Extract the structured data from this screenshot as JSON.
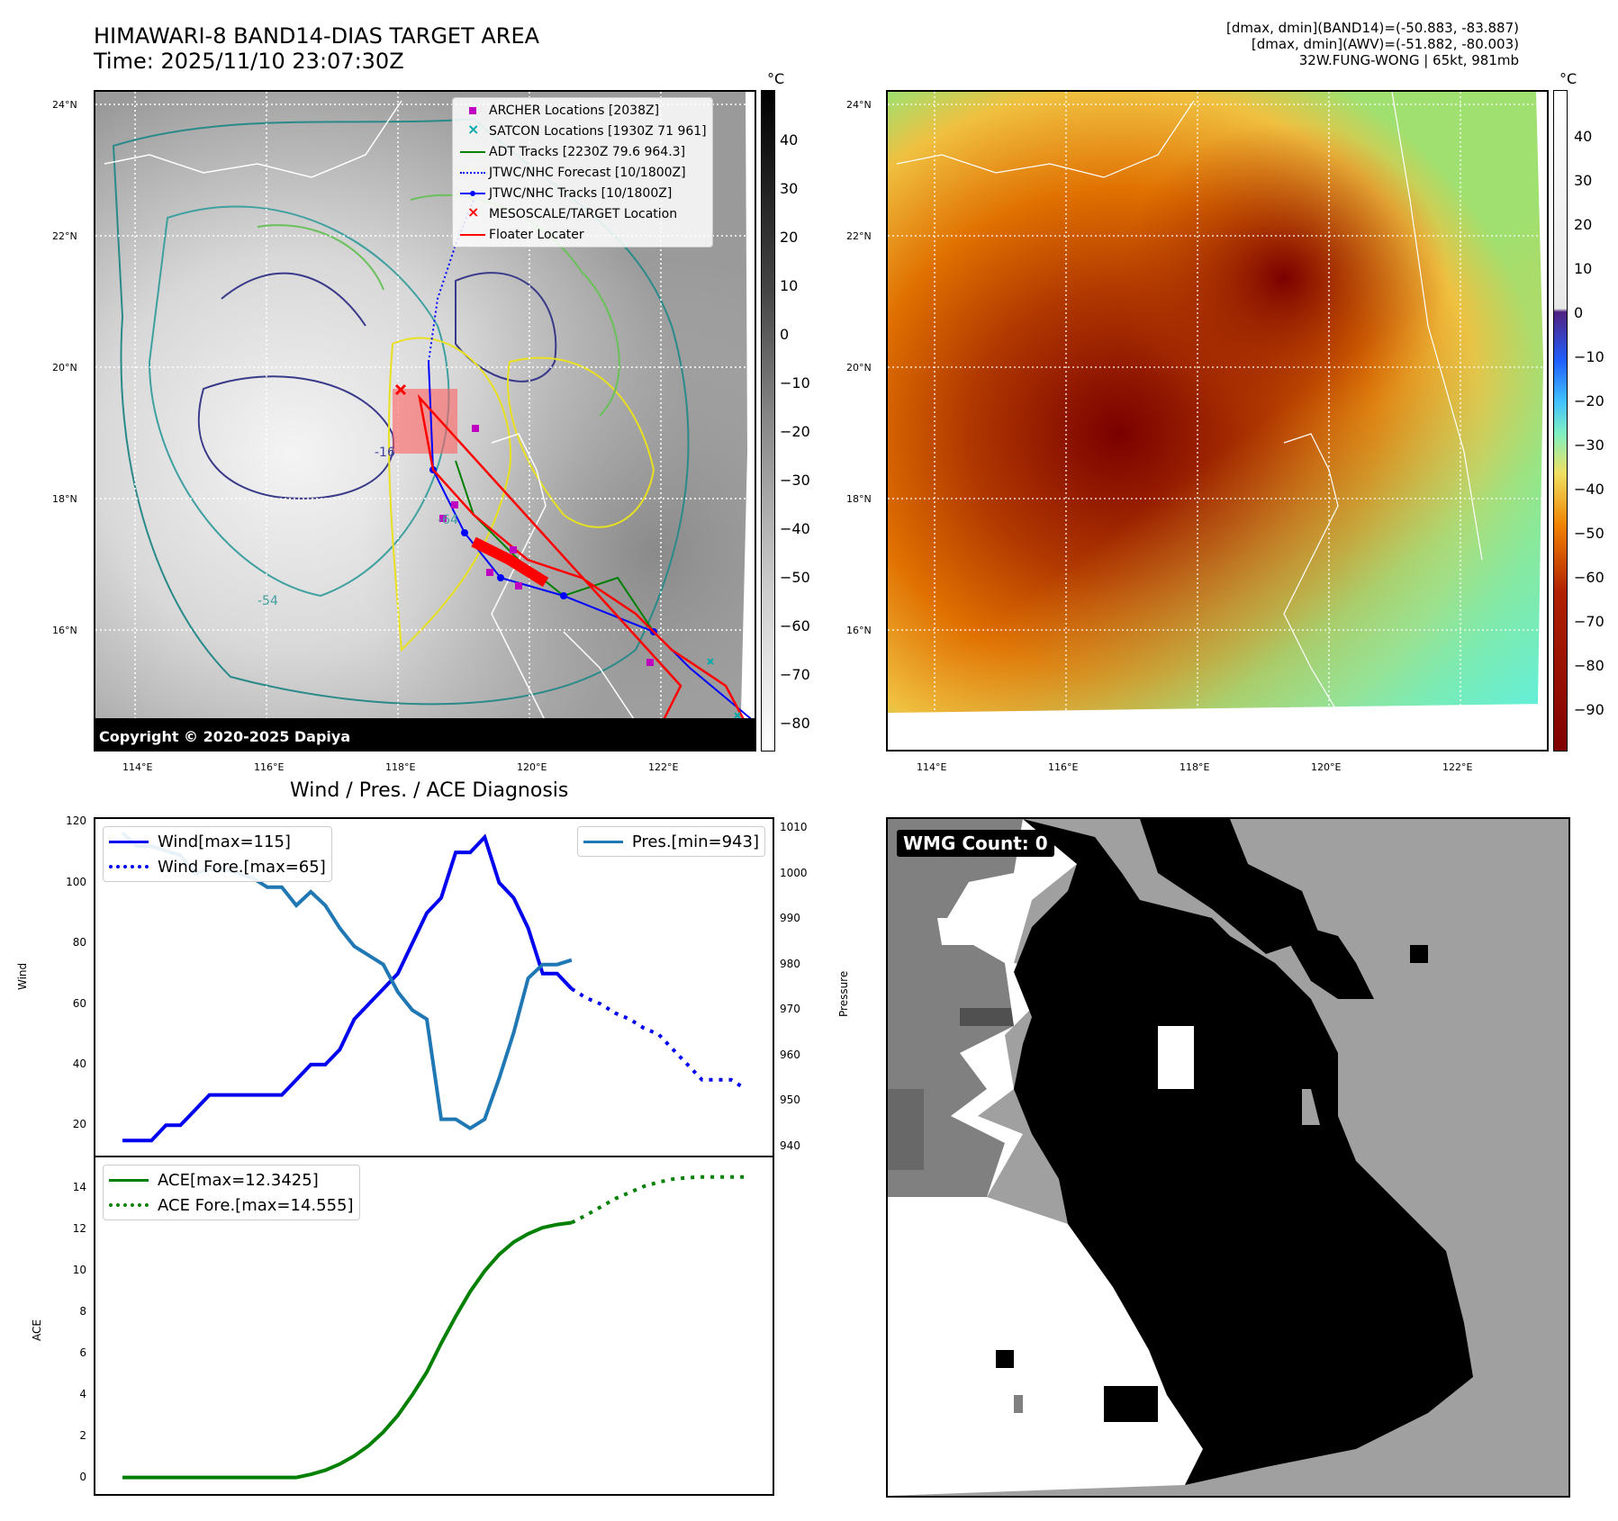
{
  "header": {
    "title": "HIMAWARI-8 BAND14-DIAS TARGET AREA",
    "time": "Time: 2025/11/10 23:07:30Z",
    "info_line1": "[dmax, dmin](BAND14)=(-50.883, -83.887)",
    "info_line2": "[dmax, dmin](AWV)=(-51.882, -80.003)",
    "info_line3": "32W.FUNG-WONG | 65kt, 981mb"
  },
  "map_panel": {
    "lat_labels": [
      "24°N",
      "22°N",
      "20°N",
      "18°N",
      "16°N"
    ],
    "lon_labels": [
      "114°E",
      "116°E",
      "118°E",
      "120°E",
      "122°E"
    ],
    "copyright": "Copyright © 2020-2025 Dapiya",
    "legend": [
      {
        "label": "ARCHER Locations [2038Z]",
        "color": "#c000c0",
        "marker": "square"
      },
      {
        "label": "SATCON Locations [1930Z 71 961]",
        "color": "#00a8a8",
        "marker": "x"
      },
      {
        "label": "ADT Tracks [2230Z 79.6 964.3]",
        "color": "#008000",
        "marker": "line"
      },
      {
        "label": "JTWC/NHC Forecast [10/1800Z]",
        "color": "#0000ff",
        "marker": "dotted"
      },
      {
        "label": "JTWC/NHC Tracks [10/1800Z]",
        "color": "#0000ff",
        "marker": "line-dot"
      },
      {
        "label": "MESOSCALE/TARGET Location",
        "color": "#ff0000",
        "marker": "x"
      },
      {
        "label": "Floater Locater",
        "color": "#ff0000",
        "marker": "line"
      }
    ],
    "contour_labels": [
      "-64",
      "-54",
      "-16"
    ]
  },
  "colorbar_gray": {
    "unit": "°C",
    "ticks": [
      "40",
      "30",
      "20",
      "10",
      "0",
      "−10",
      "−20",
      "−30",
      "−40",
      "−50",
      "−60",
      "−70",
      "−80"
    ]
  },
  "colorbar_color": {
    "unit": "°C",
    "ticks": [
      "40",
      "30",
      "20",
      "10",
      "0",
      "−10",
      "−20",
      "−30",
      "−40",
      "−50",
      "−60",
      "−70",
      "−80",
      "−90"
    ]
  },
  "wmg_panel": {
    "label": "WMG Count: 0"
  },
  "chart_data": [
    {
      "type": "line",
      "title": "Wind / Pres. / ACE Diagnosis",
      "ylabel": "Wind",
      "y2label": "Pressure",
      "ylim": [
        10,
        121
      ],
      "y2lim": [
        938,
        1012
      ],
      "yticks": [
        "120",
        "100",
        "80",
        "60",
        "40",
        "20"
      ],
      "y2ticks": [
        "1010",
        "1000",
        "990",
        "980",
        "970",
        "960",
        "950",
        "940"
      ],
      "series": [
        {
          "name": "Wind[max=115]",
          "color": "#0000ee",
          "style": "solid",
          "x": [
            0,
            1,
            2,
            3,
            4,
            5,
            6,
            7,
            8,
            9,
            10,
            11,
            12,
            13,
            14,
            15,
            16,
            17,
            18,
            19,
            20,
            21,
            22,
            23,
            24,
            25,
            26,
            27,
            28,
            29,
            30,
            31,
            32,
            33
          ],
          "values": [
            15,
            15,
            15,
            20,
            20,
            25,
            30,
            30,
            30,
            30,
            30,
            30,
            35,
            40,
            40,
            45,
            55,
            60,
            65,
            70,
            80,
            90,
            95,
            110,
            110,
            115,
            100,
            95,
            85,
            70,
            70,
            65,
            null,
            null
          ]
        },
        {
          "name": "Wind Fore.[max=65]",
          "color": "#0000ee",
          "style": "dotted",
          "x": [
            31,
            32,
            33,
            34,
            35,
            36,
            37,
            38,
            39,
            40,
            41,
            42,
            43
          ],
          "values": [
            65,
            62,
            60,
            57,
            55,
            52,
            50,
            45,
            40,
            35,
            35,
            35,
            32
          ]
        },
        {
          "name": "Pres.[min=943]",
          "color": "#1f77b4",
          "style": "solid",
          "axis": "right",
          "x": [
            0,
            1,
            2,
            3,
            4,
            5,
            6,
            7,
            8,
            9,
            10,
            11,
            12,
            13,
            14,
            15,
            16,
            17,
            18,
            19,
            20,
            21,
            22,
            23,
            24,
            25,
            26,
            27,
            28,
            29,
            30,
            31
          ],
          "values": [
            1009,
            1006,
            1006,
            1005,
            1004,
            1000,
            1001,
            1001,
            1000,
            999,
            997,
            997,
            993,
            996,
            993,
            988,
            984,
            982,
            980,
            974,
            970,
            968,
            946,
            946,
            944,
            946,
            955,
            965,
            977,
            980,
            980,
            981
          ]
        }
      ],
      "legend_left": [
        "Wind[max=115]",
        "Wind Fore.[max=65]"
      ],
      "legend_right": [
        "Pres.[min=943]"
      ]
    },
    {
      "type": "line",
      "ylabel": "ACE",
      "ylim": [
        -0.8,
        15.5
      ],
      "yticks": [
        "14",
        "12",
        "10",
        "8",
        "6",
        "4",
        "2",
        "0"
      ],
      "series": [
        {
          "name": "ACE[max=12.3425]",
          "color": "#008000",
          "style": "solid",
          "x": [
            0,
            4,
            8,
            12,
            13,
            14,
            15,
            16,
            17,
            18,
            19,
            20,
            21,
            22,
            23,
            24,
            25,
            26,
            27,
            28,
            29,
            30,
            31
          ],
          "values": [
            0,
            0,
            0,
            0,
            0.15,
            0.35,
            0.65,
            1.05,
            1.55,
            2.2,
            3.0,
            4.0,
            5.1,
            6.5,
            7.8,
            9.0,
            10.0,
            10.8,
            11.4,
            11.8,
            12.1,
            12.25,
            12.34
          ]
        },
        {
          "name": "ACE Fore.[max=14.555]",
          "color": "#008000",
          "style": "dotted",
          "x": [
            31,
            32,
            33,
            34,
            35,
            36,
            37,
            38,
            39,
            40,
            41,
            42,
            43
          ],
          "values": [
            12.34,
            12.7,
            13.1,
            13.5,
            13.8,
            14.1,
            14.3,
            14.45,
            14.52,
            14.55,
            14.55,
            14.555,
            14.555
          ]
        }
      ]
    }
  ]
}
